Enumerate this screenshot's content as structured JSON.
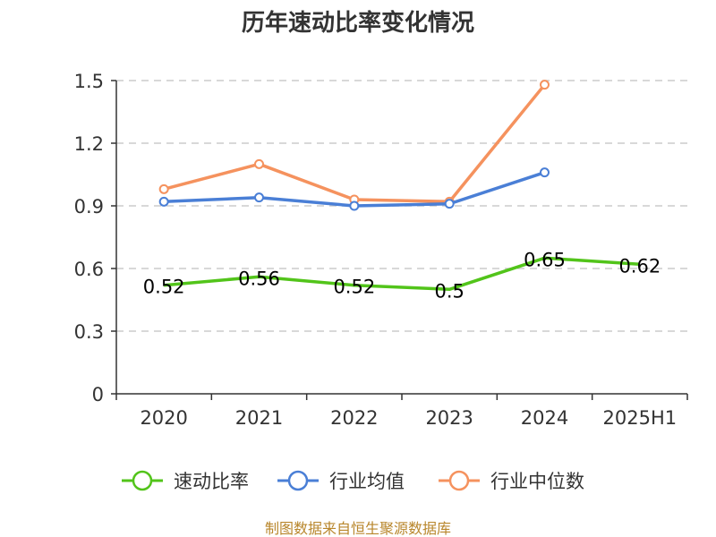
{
  "chart_data": {
    "type": "line",
    "title": "历年速动比率变化情况",
    "categories": [
      "2020",
      "2021",
      "2022",
      "2023",
      "2024",
      "2025H1"
    ],
    "ylim": [
      0,
      1.5
    ],
    "yticks": [
      "0",
      "0.3",
      "0.6",
      "0.9",
      "1.2",
      "1.5"
    ],
    "grid": true,
    "legend_position": "bottom",
    "series": [
      {
        "name": "速动比率",
        "color": "#52c41a",
        "values": [
          0.52,
          0.56,
          0.52,
          0.5,
          0.65,
          0.62
        ],
        "labels": [
          "0.52",
          "0.56",
          "0.52",
          "0.5",
          "0.65",
          "0.62"
        ],
        "markers": false
      },
      {
        "name": "行业均值",
        "color": "#4a7fd6",
        "values": [
          0.92,
          0.94,
          0.9,
          0.91,
          1.06,
          null
        ],
        "markers": true
      },
      {
        "name": "行业中位数",
        "color": "#f5925e",
        "values": [
          0.98,
          1.1,
          0.93,
          0.92,
          1.48,
          null
        ],
        "markers": true
      }
    ]
  },
  "source": "制图数据来自恒生聚源数据库"
}
